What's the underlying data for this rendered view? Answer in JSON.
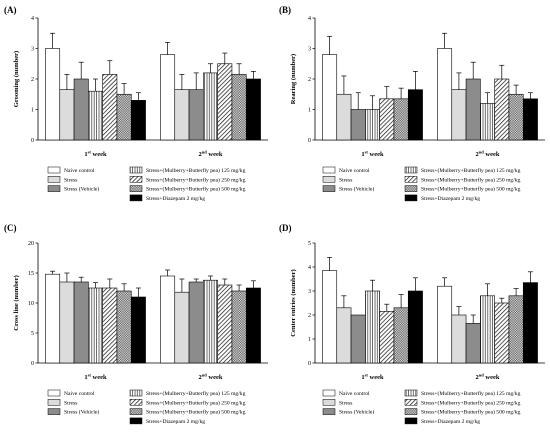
{
  "figure": {
    "weeks": [
      "1st week",
      "2nd week"
    ]
  },
  "legend": {
    "groups": [
      {
        "label": "Naive control",
        "pattern": "white"
      },
      {
        "label": "Stress",
        "pattern": "lightgray"
      },
      {
        "label": "Stress (Vehicle)",
        "pattern": "gray"
      },
      {
        "label": "Stress+(Mulberry+Butterfly pea) 125 mg/kg",
        "pattern": "vlines"
      },
      {
        "label": "Stress+(Mulberry+Butterfly pea) 250 mg/kg",
        "pattern": "diag"
      },
      {
        "label": "Stress+(Mulberry+Butterfly pea) 500 mg/kg",
        "pattern": "check"
      },
      {
        "label": "Stress+Diazepam 2 mg/kg",
        "pattern": "black"
      }
    ]
  },
  "chart_data": [
    {
      "panel": "(A)",
      "type": "bar",
      "ylabel": "Grooming (number)",
      "ylim": [
        0,
        4
      ],
      "yticks": [
        "0",
        "1",
        "2",
        "3",
        "4"
      ],
      "categories": [
        "1st week",
        "2nd week"
      ],
      "series": [
        {
          "name": "Naive control",
          "values": [
            3.0,
            2.8
          ],
          "errors": [
            0.5,
            0.4
          ]
        },
        {
          "name": "Stress",
          "values": [
            1.65,
            1.65
          ],
          "errors": [
            0.5,
            0.5
          ]
        },
        {
          "name": "Stress (Vehicle)",
          "values": [
            2.0,
            1.65
          ],
          "errors": [
            0.55,
            0.55
          ]
        },
        {
          "name": "Stress+(Mulberry+Butterfly pea) 125 mg/kg",
          "values": [
            1.6,
            2.2
          ],
          "errors": [
            0.4,
            0.3
          ]
        },
        {
          "name": "Stress+(Mulberry+Butterfly pea) 250 mg/kg",
          "values": [
            2.15,
            2.5
          ],
          "errors": [
            0.45,
            0.35
          ]
        },
        {
          "name": "Stress+(Mulberry+Butterfly pea) 500 mg/kg",
          "values": [
            1.5,
            2.15
          ],
          "errors": [
            0.35,
            0.35
          ]
        },
        {
          "name": "Stress+Diazepam 2 mg/kg",
          "values": [
            1.3,
            2.0
          ],
          "errors": [
            0.25,
            0.25
          ]
        }
      ]
    },
    {
      "panel": "(B)",
      "type": "bar",
      "ylabel": "Rearing (number)",
      "ylim": [
        0,
        4
      ],
      "yticks": [
        "0",
        "1",
        "2",
        "3",
        "4"
      ],
      "categories": [
        "1st week",
        "2nd week"
      ],
      "series": [
        {
          "name": "Naive control",
          "values": [
            2.8,
            3.0
          ],
          "errors": [
            0.6,
            0.5
          ]
        },
        {
          "name": "Stress",
          "values": [
            1.5,
            1.65
          ],
          "errors": [
            0.6,
            0.55
          ]
        },
        {
          "name": "Stress (Vehicle)",
          "values": [
            1.0,
            2.0
          ],
          "errors": [
            0.55,
            0.55
          ]
        },
        {
          "name": "Stress+(Mulberry+Butterfly pea) 125 mg/kg",
          "values": [
            1.0,
            1.2
          ],
          "errors": [
            0.45,
            0.35
          ]
        },
        {
          "name": "Stress+(Mulberry+Butterfly pea) 250 mg/kg",
          "values": [
            1.35,
            2.0
          ],
          "errors": [
            0.4,
            0.45
          ]
        },
        {
          "name": "Stress+(Mulberry+Butterfly pea) 500 mg/kg",
          "values": [
            1.35,
            1.5
          ],
          "errors": [
            0.35,
            0.3
          ]
        },
        {
          "name": "Stress+Diazepam 2 mg/kg",
          "values": [
            1.65,
            1.35
          ],
          "errors": [
            0.6,
            0.2
          ]
        }
      ]
    },
    {
      "panel": "(C)",
      "type": "bar",
      "ylabel": "Cross line (number)",
      "ylim": [
        0,
        20
      ],
      "yticks": [
        "0",
        "5",
        "10",
        "15",
        "20"
      ],
      "categories": [
        "1st week",
        "2nd week"
      ],
      "series": [
        {
          "name": "Naive control",
          "values": [
            14.8,
            14.5
          ],
          "errors": [
            0.5,
            1.0
          ]
        },
        {
          "name": "Stress",
          "values": [
            13.5,
            11.8
          ],
          "errors": [
            1.5,
            2.2
          ]
        },
        {
          "name": "Stress (Vehicle)",
          "values": [
            13.5,
            13.5
          ],
          "errors": [
            0.8,
            0.5
          ]
        },
        {
          "name": "Stress+(Mulberry+Butterfly pea) 125 mg/kg",
          "values": [
            12.5,
            13.8
          ],
          "errors": [
            0.9,
            0.7
          ]
        },
        {
          "name": "Stress+(Mulberry+Butterfly pea) 250 mg/kg",
          "values": [
            12.5,
            13.0
          ],
          "errors": [
            1.5,
            1.0
          ]
        },
        {
          "name": "Stress+(Mulberry+Butterfly pea) 500 mg/kg",
          "values": [
            12.0,
            12.0
          ],
          "errors": [
            1.2,
            1.0
          ]
        },
        {
          "name": "Stress+Diazepam 2 mg/kg",
          "values": [
            11.0,
            12.5
          ],
          "errors": [
            1.5,
            1.2
          ]
        }
      ]
    },
    {
      "panel": "(D)",
      "type": "bar",
      "ylabel": "Center entries (number)",
      "ylim": [
        0,
        5
      ],
      "yticks": [
        "0",
        "1",
        "2",
        "3",
        "4",
        "5"
      ],
      "categories": [
        "1st week",
        "2nd week"
      ],
      "series": [
        {
          "name": "Naive control",
          "values": [
            3.85,
            3.2
          ],
          "errors": [
            0.55,
            0.35
          ]
        },
        {
          "name": "Stress",
          "values": [
            2.3,
            2.0
          ],
          "errors": [
            0.5,
            0.35
          ]
        },
        {
          "name": "Stress (Vehicle)",
          "values": [
            2.0,
            1.65
          ],
          "errors": [
            0.0,
            0.35
          ]
        },
        {
          "name": "Stress+(Mulberry+Butterfly pea) 125 mg/kg",
          "values": [
            3.0,
            2.8
          ],
          "errors": [
            0.45,
            0.5
          ]
        },
        {
          "name": "Stress+(Mulberry+Butterfly pea) 250 mg/kg",
          "values": [
            2.15,
            2.5
          ],
          "errors": [
            0.3,
            0.2
          ]
        },
        {
          "name": "Stress+(Mulberry+Butterfly pea) 500 mg/kg",
          "values": [
            2.3,
            2.8
          ],
          "errors": [
            0.55,
            0.3
          ]
        },
        {
          "name": "Stress+Diazepam 2 mg/kg",
          "values": [
            3.0,
            3.35
          ],
          "errors": [
            0.55,
            0.45
          ]
        }
      ]
    }
  ]
}
